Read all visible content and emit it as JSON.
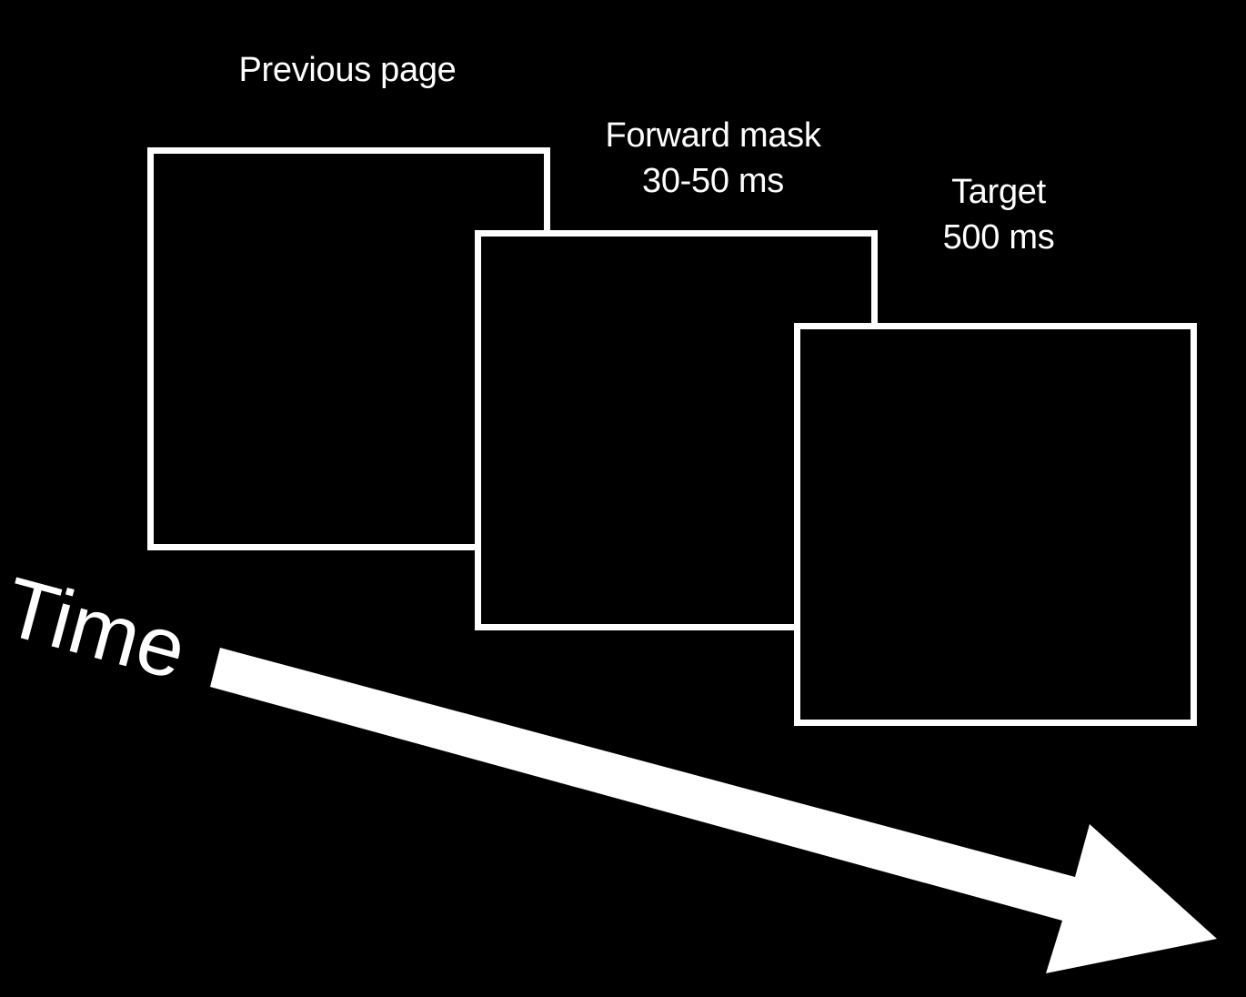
{
  "stages": [
    {
      "title": "Previous page",
      "duration": ""
    },
    {
      "title": "Forward mask",
      "duration": "30-50 ms"
    },
    {
      "title": "Target",
      "duration": "500 ms"
    }
  ],
  "time_axis": {
    "label": "Time"
  },
  "colors": {
    "background": "#000000",
    "foreground": "#ffffff"
  }
}
